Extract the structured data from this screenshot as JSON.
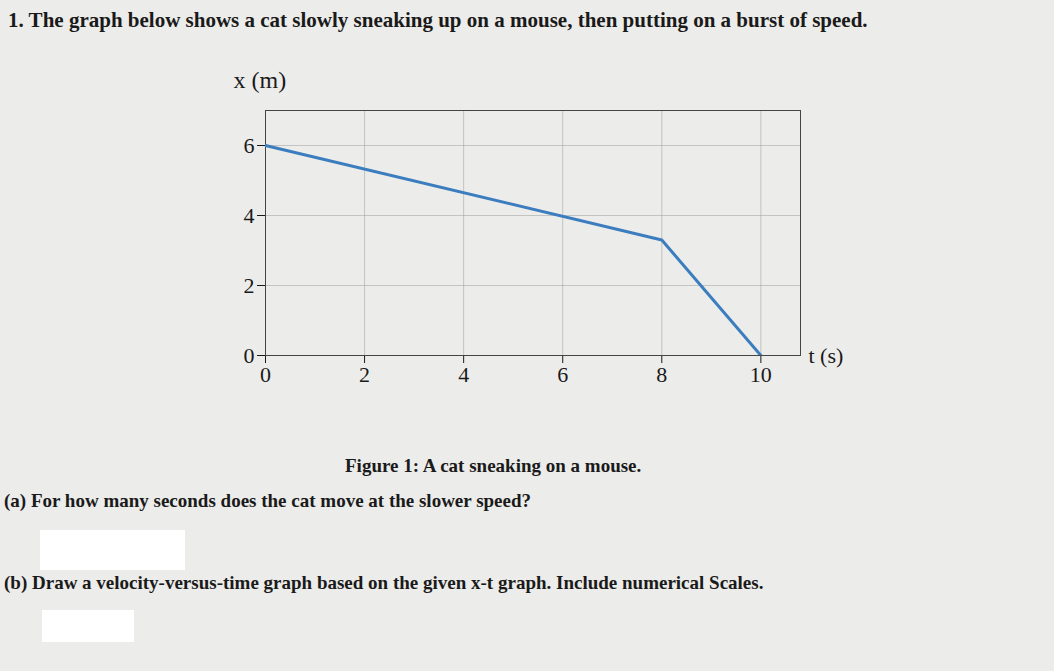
{
  "chart_data": {
    "type": "line",
    "title": "1. The graph below shows a cat slowly sneaking up on a mouse, then putting on a burst of speed.",
    "x_label": "t (s)",
    "y_label": "x (m)",
    "x": [
      0,
      8,
      10
    ],
    "values": [
      6,
      3.3,
      0
    ],
    "color": "#3b7dbf",
    "xlim": [
      0,
      10.8
    ],
    "ylim": [
      0,
      7
    ],
    "xticks": [
      0,
      2,
      4,
      6,
      8,
      10
    ],
    "yticks": [
      0,
      2,
      4,
      6
    ],
    "grid": true,
    "annotations": [
      "Figure 1: A cat sneaking on a mouse.",
      "(a) For how many seconds does the cat move at the slower speed?",
      "(b) Draw a velocity-versus-time graph based on the given x-t graph. Include numerical Scales."
    ]
  }
}
